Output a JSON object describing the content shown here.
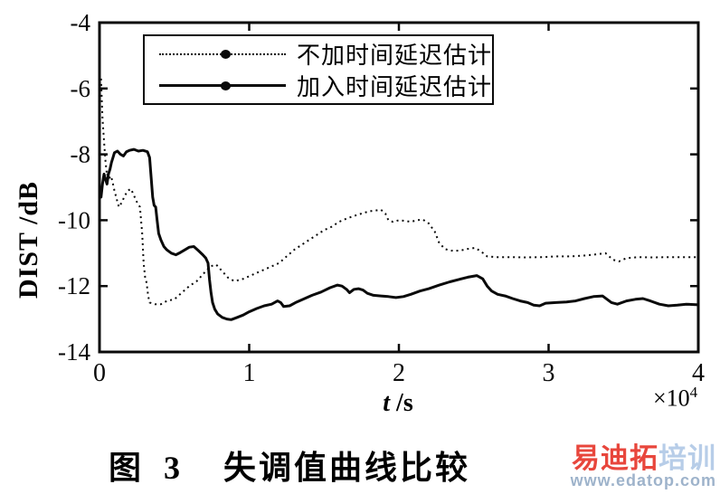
{
  "figure": {
    "caption_prefix": "图 3",
    "caption_text": "失调值曲线比较"
  },
  "watermark": {
    "brand_main": "易迪拓",
    "brand_suffix": "培训",
    "url": "www.edatop.com",
    "brand_main_color": "#e8463c",
    "brand_suffix_color": "#b7cde8",
    "url_color": "#9eb3cb"
  },
  "chart_data": {
    "type": "line",
    "title": "",
    "xlabel_var": "t",
    "xlabel_unit": " /s",
    "x_scale_base": "×10",
    "x_scale_exp": "4",
    "ylabel": "DIST /dB",
    "xlim": [
      0,
      4
    ],
    "ylim": [
      -14,
      -4
    ],
    "xticks": [
      0,
      1,
      2,
      3,
      4
    ],
    "yticks": [
      -4,
      -6,
      -8,
      -10,
      -12,
      -14
    ],
    "grid": false,
    "line_color": "#0a0a0a",
    "legend_position": "top-left-inside",
    "series": [
      {
        "name": "不加时间延迟估计",
        "line_style": "dotted",
        "marker": "filled-circle",
        "color": "#0a0a0a",
        "points": [
          [
            0.01,
            -5.7
          ],
          [
            0.015,
            -6.3
          ],
          [
            0.02,
            -6.9
          ],
          [
            0.03,
            -7.6
          ],
          [
            0.04,
            -8.2
          ],
          [
            0.05,
            -8.65
          ],
          [
            0.06,
            -8.5
          ],
          [
            0.07,
            -8.75
          ],
          [
            0.08,
            -8.7
          ],
          [
            0.09,
            -8.9
          ],
          [
            0.1,
            -9.1
          ],
          [
            0.12,
            -9.45
          ],
          [
            0.13,
            -9.6
          ],
          [
            0.15,
            -9.45
          ],
          [
            0.17,
            -9.25
          ],
          [
            0.19,
            -9.1
          ],
          [
            0.21,
            -9.05
          ],
          [
            0.23,
            -9.25
          ],
          [
            0.25,
            -9.45
          ],
          [
            0.27,
            -9.6
          ],
          [
            0.285,
            -10.4
          ],
          [
            0.295,
            -11.3
          ],
          [
            0.305,
            -11.75
          ],
          [
            0.315,
            -11.9
          ],
          [
            0.325,
            -12.3
          ],
          [
            0.335,
            -12.5
          ],
          [
            0.37,
            -12.55
          ],
          [
            0.41,
            -12.55
          ],
          [
            0.45,
            -12.45
          ],
          [
            0.5,
            -12.4
          ],
          [
            0.55,
            -12.2
          ],
          [
            0.6,
            -12.0
          ],
          [
            0.65,
            -11.85
          ],
          [
            0.7,
            -11.6
          ],
          [
            0.74,
            -11.4
          ],
          [
            0.78,
            -11.35
          ],
          [
            0.82,
            -11.55
          ],
          [
            0.86,
            -11.75
          ],
          [
            0.9,
            -11.85
          ],
          [
            0.95,
            -11.8
          ],
          [
            1.0,
            -11.7
          ],
          [
            1.05,
            -11.6
          ],
          [
            1.1,
            -11.5
          ],
          [
            1.15,
            -11.4
          ],
          [
            1.2,
            -11.3
          ],
          [
            1.25,
            -11.1
          ],
          [
            1.3,
            -10.9
          ],
          [
            1.35,
            -10.75
          ],
          [
            1.4,
            -10.6
          ],
          [
            1.45,
            -10.45
          ],
          [
            1.5,
            -10.3
          ],
          [
            1.55,
            -10.2
          ],
          [
            1.6,
            -10.05
          ],
          [
            1.65,
            -9.95
          ],
          [
            1.7,
            -9.87
          ],
          [
            1.75,
            -9.8
          ],
          [
            1.8,
            -9.73
          ],
          [
            1.85,
            -9.7
          ],
          [
            1.88,
            -9.68
          ],
          [
            1.91,
            -9.8
          ],
          [
            1.93,
            -10.0
          ],
          [
            1.96,
            -10.05
          ],
          [
            2.0,
            -10.0
          ],
          [
            2.04,
            -10.02
          ],
          [
            2.08,
            -10.05
          ],
          [
            2.12,
            -10.0
          ],
          [
            2.16,
            -9.98
          ],
          [
            2.2,
            -10.1
          ],
          [
            2.24,
            -10.35
          ],
          [
            2.27,
            -10.7
          ],
          [
            2.31,
            -10.88
          ],
          [
            2.36,
            -10.93
          ],
          [
            2.41,
            -10.92
          ],
          [
            2.46,
            -10.87
          ],
          [
            2.51,
            -10.84
          ],
          [
            2.55,
            -10.95
          ],
          [
            2.59,
            -11.1
          ],
          [
            2.65,
            -11.12
          ],
          [
            2.75,
            -11.12
          ],
          [
            2.85,
            -11.13
          ],
          [
            2.95,
            -11.12
          ],
          [
            3.05,
            -11.1
          ],
          [
            3.15,
            -11.1
          ],
          [
            3.25,
            -11.07
          ],
          [
            3.33,
            -11.03
          ],
          [
            3.38,
            -11.0
          ],
          [
            3.43,
            -11.2
          ],
          [
            3.47,
            -11.25
          ],
          [
            3.52,
            -11.15
          ],
          [
            3.6,
            -11.12
          ],
          [
            3.7,
            -11.13
          ],
          [
            3.8,
            -11.12
          ],
          [
            3.9,
            -11.12
          ],
          [
            4.0,
            -11.12
          ]
        ]
      },
      {
        "name": "加入时间延迟估计",
        "line_style": "solid",
        "marker": "filled-circle",
        "color": "#0a0a0a",
        "points": [
          [
            0.01,
            -9.3
          ],
          [
            0.02,
            -8.9
          ],
          [
            0.03,
            -8.6
          ],
          [
            0.04,
            -8.75
          ],
          [
            0.05,
            -8.9
          ],
          [
            0.06,
            -8.6
          ],
          [
            0.07,
            -8.45
          ],
          [
            0.08,
            -8.25
          ],
          [
            0.09,
            -8.1
          ],
          [
            0.1,
            -7.95
          ],
          [
            0.12,
            -7.9
          ],
          [
            0.14,
            -8.0
          ],
          [
            0.16,
            -8.05
          ],
          [
            0.18,
            -7.92
          ],
          [
            0.2,
            -7.88
          ],
          [
            0.23,
            -7.85
          ],
          [
            0.26,
            -7.9
          ],
          [
            0.29,
            -7.88
          ],
          [
            0.32,
            -7.92
          ],
          [
            0.335,
            -8.1
          ],
          [
            0.345,
            -8.7
          ],
          [
            0.355,
            -9.3
          ],
          [
            0.365,
            -9.55
          ],
          [
            0.375,
            -9.6
          ],
          [
            0.385,
            -10.0
          ],
          [
            0.395,
            -10.4
          ],
          [
            0.41,
            -10.6
          ],
          [
            0.43,
            -10.8
          ],
          [
            0.45,
            -10.9
          ],
          [
            0.48,
            -11.0
          ],
          [
            0.51,
            -11.05
          ],
          [
            0.54,
            -10.98
          ],
          [
            0.57,
            -10.9
          ],
          [
            0.6,
            -10.82
          ],
          [
            0.63,
            -10.8
          ],
          [
            0.66,
            -10.92
          ],
          [
            0.69,
            -11.05
          ],
          [
            0.71,
            -11.15
          ],
          [
            0.725,
            -11.3
          ],
          [
            0.735,
            -11.8
          ],
          [
            0.745,
            -12.2
          ],
          [
            0.755,
            -12.5
          ],
          [
            0.77,
            -12.7
          ],
          [
            0.79,
            -12.85
          ],
          [
            0.82,
            -12.95
          ],
          [
            0.85,
            -13.0
          ],
          [
            0.88,
            -13.02
          ],
          [
            0.92,
            -12.95
          ],
          [
            0.96,
            -12.88
          ],
          [
            1.0,
            -12.78
          ],
          [
            1.05,
            -12.68
          ],
          [
            1.1,
            -12.6
          ],
          [
            1.15,
            -12.55
          ],
          [
            1.19,
            -12.45
          ],
          [
            1.21,
            -12.5
          ],
          [
            1.23,
            -12.62
          ],
          [
            1.27,
            -12.6
          ],
          [
            1.31,
            -12.5
          ],
          [
            1.36,
            -12.4
          ],
          [
            1.42,
            -12.28
          ],
          [
            1.48,
            -12.18
          ],
          [
            1.54,
            -12.05
          ],
          [
            1.59,
            -11.97
          ],
          [
            1.62,
            -12.0
          ],
          [
            1.65,
            -12.1
          ],
          [
            1.67,
            -12.2
          ],
          [
            1.7,
            -12.1
          ],
          [
            1.73,
            -12.08
          ],
          [
            1.76,
            -12.12
          ],
          [
            1.79,
            -12.22
          ],
          [
            1.83,
            -12.28
          ],
          [
            1.88,
            -12.3
          ],
          [
            1.93,
            -12.32
          ],
          [
            1.98,
            -12.35
          ],
          [
            2.03,
            -12.32
          ],
          [
            2.08,
            -12.25
          ],
          [
            2.14,
            -12.15
          ],
          [
            2.2,
            -12.08
          ],
          [
            2.27,
            -11.97
          ],
          [
            2.34,
            -11.87
          ],
          [
            2.4,
            -11.8
          ],
          [
            2.46,
            -11.73
          ],
          [
            2.52,
            -11.68
          ],
          [
            2.56,
            -11.78
          ],
          [
            2.59,
            -12.0
          ],
          [
            2.62,
            -12.15
          ],
          [
            2.66,
            -12.25
          ],
          [
            2.71,
            -12.3
          ],
          [
            2.76,
            -12.38
          ],
          [
            2.81,
            -12.45
          ],
          [
            2.86,
            -12.5
          ],
          [
            2.9,
            -12.58
          ],
          [
            2.94,
            -12.6
          ],
          [
            2.98,
            -12.52
          ],
          [
            3.05,
            -12.5
          ],
          [
            3.12,
            -12.48
          ],
          [
            3.18,
            -12.45
          ],
          [
            3.24,
            -12.38
          ],
          [
            3.3,
            -12.32
          ],
          [
            3.36,
            -12.3
          ],
          [
            3.42,
            -12.5
          ],
          [
            3.46,
            -12.55
          ],
          [
            3.52,
            -12.45
          ],
          [
            3.58,
            -12.4
          ],
          [
            3.63,
            -12.38
          ],
          [
            3.68,
            -12.45
          ],
          [
            3.74,
            -12.55
          ],
          [
            3.8,
            -12.6
          ],
          [
            3.86,
            -12.58
          ],
          [
            3.92,
            -12.55
          ],
          [
            4.0,
            -12.57
          ]
        ]
      }
    ]
  }
}
